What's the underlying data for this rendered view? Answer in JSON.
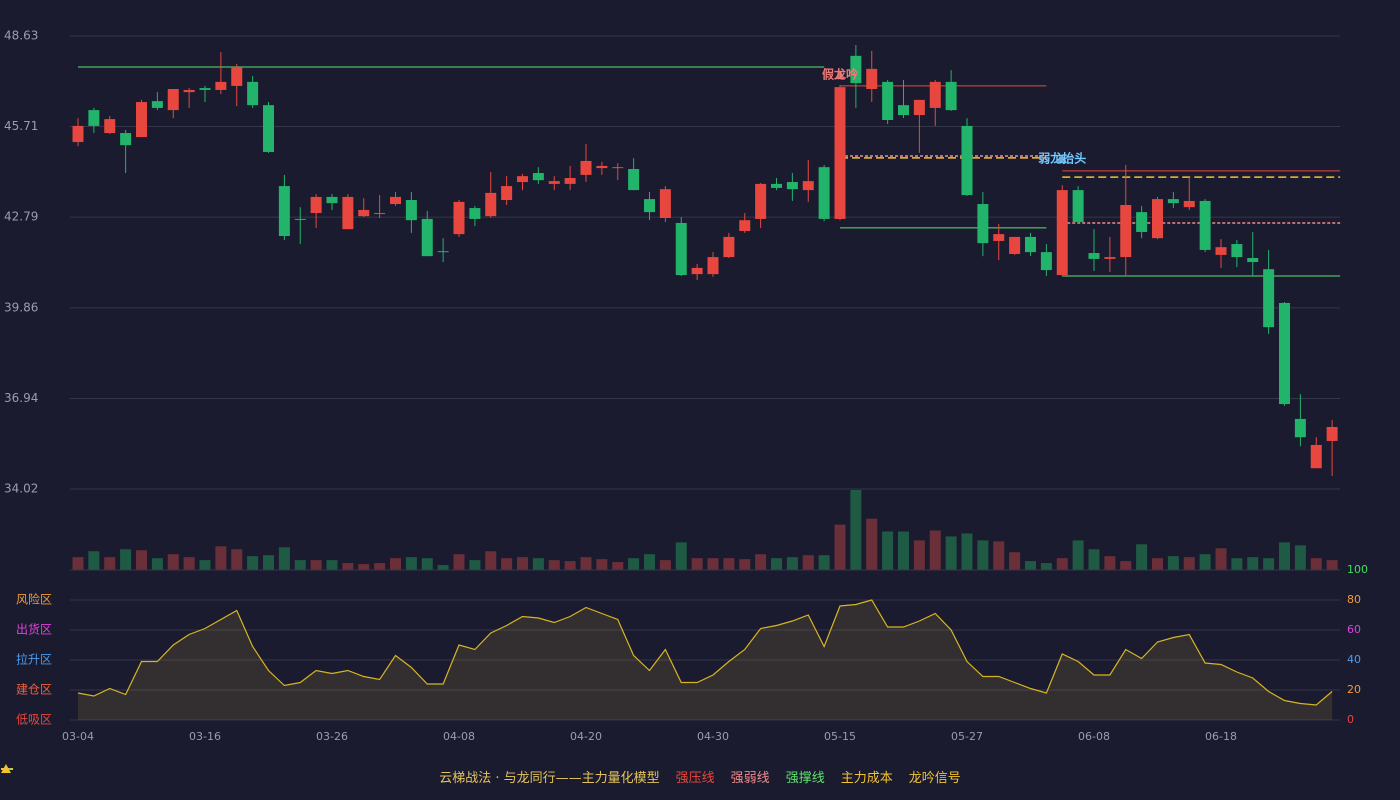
{
  "chart_data": [
    {
      "type": "candlestick",
      "categories": [
        "03-04",
        null,
        null,
        null,
        null,
        null,
        null,
        null,
        "03-16",
        null,
        null,
        null,
        null,
        null,
        null,
        null,
        "03-26",
        null,
        null,
        null,
        null,
        null,
        null,
        null,
        "04-08",
        null,
        null,
        null,
        null,
        null,
        null,
        null,
        "04-20",
        null,
        null,
        null,
        null,
        null,
        null,
        null,
        "04-30",
        null,
        null,
        null,
        null,
        null,
        null,
        null,
        "05-15",
        null,
        null,
        null,
        null,
        null,
        null,
        null,
        "05-27",
        null,
        null,
        null,
        null,
        null,
        null,
        null,
        "06-08",
        null,
        null,
        null,
        null,
        null,
        null,
        null,
        "06-18",
        null,
        null,
        null,
        null,
        null,
        null,
        null
      ],
      "ohlc": [
        [
          45.21,
          45.98,
          45.08,
          45.73
        ],
        [
          46.24,
          46.31,
          45.5,
          45.73
        ],
        [
          45.5,
          46.05,
          45.47,
          45.95
        ],
        [
          45.5,
          45.6,
          44.21,
          45.11
        ],
        [
          45.37,
          46.57,
          45.37,
          46.5
        ],
        [
          46.53,
          46.82,
          46.24,
          46.31
        ],
        [
          46.24,
          46.92,
          45.98,
          46.92
        ],
        [
          46.82,
          46.95,
          46.31,
          46.89
        ],
        [
          46.95,
          47.02,
          46.5,
          46.89
        ],
        [
          46.89,
          48.11,
          46.76,
          47.15
        ],
        [
          47.02,
          47.73,
          46.37,
          47.63
        ],
        [
          47.15,
          47.34,
          46.31,
          46.4
        ],
        [
          46.4,
          46.5,
          44.86,
          44.89
        ],
        [
          43.79,
          44.15,
          42.05,
          42.18
        ],
        [
          42.73,
          43.11,
          41.92,
          42.71
        ],
        [
          42.92,
          43.53,
          42.44,
          43.44
        ],
        [
          43.44,
          43.53,
          43.02,
          43.24
        ],
        [
          42.4,
          43.53,
          42.4,
          43.44
        ],
        [
          42.82,
          43.4,
          42.79,
          43.02
        ],
        [
          42.89,
          43.5,
          42.76,
          42.92
        ],
        [
          43.21,
          43.6,
          43.15,
          43.44
        ],
        [
          43.34,
          43.6,
          42.28,
          42.69
        ],
        [
          42.73,
          42.99,
          41.53,
          41.53
        ],
        [
          41.69,
          42.11,
          41.34,
          41.66
        ],
        [
          42.24,
          43.34,
          42.15,
          43.28
        ],
        [
          43.08,
          43.15,
          42.5,
          42.73
        ],
        [
          42.82,
          44.24,
          42.76,
          43.57
        ],
        [
          43.34,
          44.11,
          43.18,
          43.79
        ],
        [
          43.92,
          44.18,
          43.66,
          44.11
        ],
        [
          44.21,
          44.4,
          43.86,
          43.98
        ],
        [
          43.86,
          44.11,
          43.66,
          43.95
        ],
        [
          43.86,
          44.44,
          43.66,
          44.05
        ],
        [
          44.15,
          45.15,
          43.92,
          44.6
        ],
        [
          44.37,
          44.57,
          44.15,
          44.44
        ],
        [
          44.37,
          44.53,
          43.98,
          44.4
        ],
        [
          44.34,
          44.69,
          43.66,
          43.66
        ],
        [
          43.37,
          43.6,
          42.69,
          42.95
        ],
        [
          42.76,
          43.79,
          42.63,
          43.69
        ],
        [
          42.6,
          42.79,
          40.89,
          40.92
        ],
        [
          40.95,
          41.28,
          40.76,
          41.15
        ],
        [
          40.95,
          41.66,
          40.86,
          41.5
        ],
        [
          41.5,
          42.28,
          41.47,
          42.15
        ],
        [
          42.34,
          42.92,
          42.28,
          42.69
        ],
        [
          42.73,
          43.89,
          42.44,
          43.86
        ],
        [
          43.86,
          44.05,
          43.66,
          43.73
        ],
        [
          43.92,
          44.21,
          43.31,
          43.69
        ],
        [
          43.66,
          44.63,
          43.28,
          43.95
        ],
        [
          44.4,
          44.47,
          42.66,
          42.73
        ],
        [
          42.73,
          47.05,
          42.69,
          46.98
        ],
        [
          47.99,
          48.34,
          46.31,
          47.11
        ],
        [
          46.92,
          48.15,
          46.5,
          47.57
        ],
        [
          47.15,
          47.21,
          45.79,
          45.92
        ],
        [
          46.4,
          47.21,
          45.98,
          46.08
        ],
        [
          46.08,
          46.57,
          44.86,
          46.57
        ],
        [
          46.31,
          47.21,
          45.73,
          47.15
        ],
        [
          47.15,
          47.53,
          46.21,
          46.24
        ],
        [
          45.73,
          45.98,
          43.47,
          43.5
        ],
        [
          43.21,
          43.6,
          41.53,
          41.95
        ],
        [
          42.02,
          42.57,
          41.4,
          42.24
        ],
        [
          41.6,
          42.15,
          41.57,
          42.15
        ],
        [
          42.15,
          42.28,
          41.53,
          41.66
        ],
        [
          41.66,
          41.92,
          40.89,
          41.08
        ],
        [
          40.92,
          43.82,
          40.89,
          43.66
        ],
        [
          43.66,
          43.79,
          42.57,
          42.63
        ],
        [
          41.63,
          42.4,
          41.05,
          41.44
        ],
        [
          41.44,
          42.15,
          41.02,
          41.5
        ],
        [
          41.5,
          44.47,
          40.92,
          43.18
        ],
        [
          42.95,
          43.15,
          42.11,
          42.31
        ],
        [
          42.11,
          43.44,
          42.08,
          43.37
        ],
        [
          43.37,
          43.6,
          43.08,
          43.24
        ],
        [
          43.11,
          44.08,
          43.02,
          43.31
        ],
        [
          43.31,
          43.37,
          41.66,
          41.73
        ],
        [
          41.57,
          42.08,
          41.15,
          41.82
        ],
        [
          41.92,
          42.05,
          41.18,
          41.5
        ],
        [
          41.47,
          42.31,
          40.89,
          41.34
        ],
        [
          41.11,
          41.73,
          39.02,
          39.24
        ],
        [
          40.02,
          40.05,
          36.7,
          36.76
        ],
        [
          36.28,
          37.08,
          35.4,
          35.69
        ],
        [
          34.69,
          35.69,
          34.69,
          35.44
        ],
        [
          35.57,
          36.24,
          34.44,
          36.02
        ]
      ],
      "up_color": "#e8473f",
      "down_color": "#22b46b",
      "ylim": [
        34.02,
        48.63
      ],
      "yticks": [
        34.02,
        36.94,
        39.86,
        42.79,
        45.71,
        48.63
      ],
      "grid": true,
      "lines": [
        {
          "name": "强压线",
          "color": "#e8473f",
          "dashed": false,
          "segments": [
            {
              "value": 47.02,
              "range": [
                48,
                61
              ]
            },
            {
              "value": 44.28,
              "range": [
                62,
                79
              ]
            }
          ]
        },
        {
          "name": "强弱线",
          "color": "#f28b8b",
          "dashed": true,
          "segments": [
            {
              "value": 44.76,
              "range": [
                48,
                61
              ]
            },
            {
              "value": 42.6,
              "range": [
                62,
                79
              ]
            }
          ]
        },
        {
          "name": "强撑线",
          "color": "#5ee36e",
          "dashed": false,
          "segments": [
            {
              "value": 47.63,
              "range": [
                0,
                47
              ]
            },
            {
              "value": 42.44,
              "range": [
                48,
                61
              ]
            },
            {
              "value": 40.89,
              "range": [
                62,
                79
              ]
            }
          ]
        },
        {
          "name": "主力成本",
          "color": "#f2c230",
          "dashed": true,
          "segments": [
            {
              "value": 44.7,
              "range": [
                48,
                61
              ]
            },
            {
              "value": 44.08,
              "range": [
                62,
                79
              ]
            }
          ]
        }
      ],
      "signals": {
        "name": "龙吟信号",
        "color": "#f2c230",
        "items": [
          {
            "label": "假龙吟",
            "index": 48,
            "value": 47.37,
            "color": "#f07a7a"
          },
          {
            "label": "弱龙抬头",
            "index": 62,
            "value": 44.66,
            "color": "#72c8ff"
          }
        ]
      },
      "legend_title": "云梯战法 · 与龙同行——主力量化模型"
    },
    {
      "type": "bar",
      "values": [
        13,
        19,
        13,
        21,
        20,
        12,
        16,
        13,
        10,
        24,
        21,
        14,
        15,
        23,
        10,
        10,
        10,
        7,
        6,
        7,
        12,
        13,
        12,
        5,
        16,
        10,
        19,
        12,
        13,
        12,
        10,
        9,
        13,
        11,
        8,
        12,
        16,
        10,
        28,
        12,
        12,
        12,
        11,
        16,
        12,
        13,
        15,
        15,
        46,
        81,
        52,
        39,
        39,
        30,
        40,
        34,
        37,
        30,
        29,
        18,
        9,
        7,
        12,
        30,
        21,
        14,
        9,
        26,
        12,
        14,
        13,
        16,
        22,
        12,
        13,
        12,
        28,
        25,
        12,
        10
      ],
      "up_color": "#6a2f38",
      "down_color": "#1f5a44",
      "ylim": [
        0,
        82
      ]
    },
    {
      "type": "area",
      "values": [
        18,
        16,
        21,
        17,
        39,
        39,
        50,
        57,
        61,
        67,
        73,
        49,
        33,
        23,
        25,
        33,
        31,
        33,
        29,
        27,
        43,
        35,
        24,
        24,
        50,
        47,
        58,
        63,
        69,
        68,
        65,
        69,
        75,
        71,
        67,
        43,
        33,
        47,
        25,
        25,
        30,
        39,
        47,
        61,
        63,
        66,
        70,
        49,
        76,
        77,
        80,
        62,
        62,
        66,
        71,
        60,
        39,
        29,
        29,
        25,
        21,
        18,
        44,
        39,
        30,
        30,
        47,
        41,
        52,
        55,
        57,
        38,
        37,
        32,
        28,
        19,
        13,
        11,
        10,
        19
      ],
      "color": "#d8b423",
      "ylim": [
        0,
        100
      ],
      "yticks": [
        0,
        20,
        40,
        60,
        80,
        100
      ],
      "ytick_colors": [
        "#e8473f",
        "#f29a3a",
        "#4a9cf0",
        "#e040e0",
        "#f29a3a",
        "#3ee05a"
      ],
      "zones": [
        {
          "label": "低吸区",
          "value": 0,
          "color": "#e8473f"
        },
        {
          "label": "建仓区",
          "value": 20,
          "color": "#f0603a"
        },
        {
          "label": "拉升区",
          "value": 40,
          "color": "#4a9cf0"
        },
        {
          "label": "出货区",
          "value": 60,
          "color": "#e040e0"
        },
        {
          "label": "风险区",
          "value": 80,
          "color": "#f29a3a"
        }
      ]
    }
  ]
}
